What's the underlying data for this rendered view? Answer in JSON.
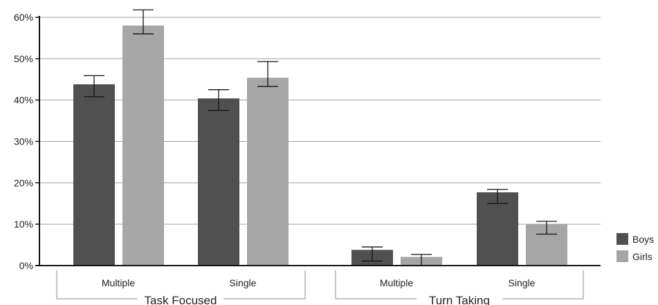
{
  "chart_data": {
    "type": "bar",
    "title": "",
    "xlabel": "",
    "ylabel": "",
    "ylim": [
      0,
      0.6
    ],
    "y_ticks": [
      "0%",
      "10%",
      "20%",
      "30%",
      "40%",
      "50%",
      "60%"
    ],
    "grid": true,
    "legend_position": "bottom-right",
    "groups": [
      {
        "label": "Task Focused",
        "categories": [
          "Multiple",
          "Single"
        ]
      },
      {
        "label": "Turn Taking",
        "categories": [
          "Multiple",
          "Single"
        ]
      }
    ],
    "categories": [
      "Multiple",
      "Single",
      "Multiple",
      "Single"
    ],
    "series": [
      {
        "name": "Boys",
        "color": "#505050",
        "values": [
          0.438,
          0.404,
          0.038,
          0.177
        ],
        "error_low": [
          0.408,
          0.375,
          0.011,
          0.15
        ],
        "error_high": [
          0.459,
          0.425,
          0.045,
          0.184
        ]
      },
      {
        "name": "Girls",
        "color": "#a6a6a6",
        "values": [
          0.58,
          0.454,
          0.021,
          0.1
        ],
        "error_low": [
          0.56,
          0.433,
          0.0,
          0.076
        ],
        "error_high": [
          0.618,
          0.493,
          0.027,
          0.107
        ]
      }
    ]
  }
}
